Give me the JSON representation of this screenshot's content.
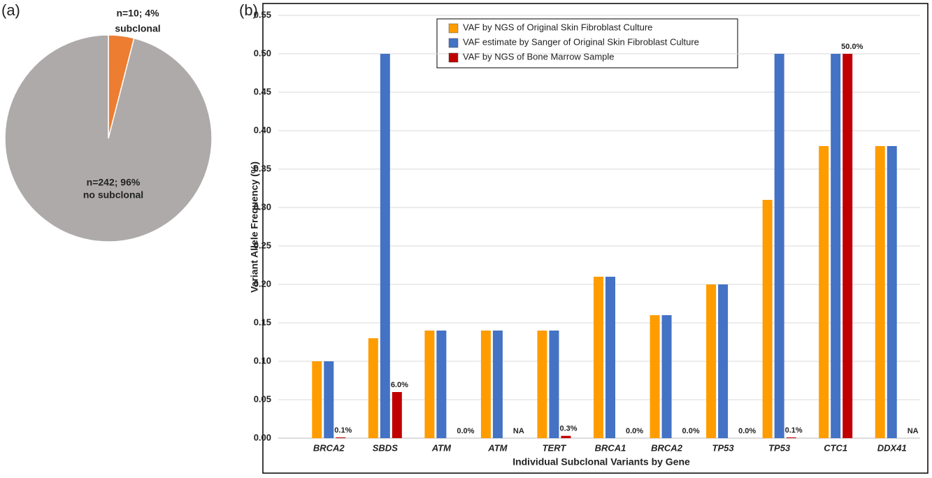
{
  "chart_data": [
    {
      "type": "pie",
      "panel": "(a)",
      "categories": [
        "subclonal",
        "no subclonal"
      ],
      "values": [
        4,
        96
      ],
      "value_labels": [
        "n=10; 4%",
        "n=242; 96%"
      ],
      "colors": [
        "#ed7d31",
        "#aeaaaa"
      ]
    },
    {
      "type": "bar",
      "panel": "(b)",
      "y_label": "Variant Allele Frequency (%)",
      "x_label": "Individual Subclonal Variants by Gene",
      "categories": [
        "BRCA2",
        "SBDS",
        "ATM",
        "ATM",
        "TERT",
        "BRCA1",
        "BRCA2",
        "TP53",
        "TP53",
        "CTC1",
        "DDX41"
      ],
      "series": [
        {
          "name": "VAF by NGS of Original Skin Fibroblast Culture",
          "color": "#ff9c00",
          "values": [
            0.1,
            0.13,
            0.14,
            0.14,
            0.14,
            0.21,
            0.16,
            0.2,
            0.31,
            0.38,
            0.38
          ]
        },
        {
          "name": "VAF estimate by Sanger of Original Skin Fibroblast Culture",
          "color": "#4472c4",
          "values": [
            0.1,
            0.5,
            0.14,
            0.14,
            0.14,
            0.21,
            0.16,
            0.2,
            0.5,
            0.5,
            0.38
          ]
        },
        {
          "name": "VAF by NGS of Bone Marrow Sample",
          "color": "#c00000",
          "values": [
            0.001,
            0.06,
            0.0,
            null,
            0.003,
            0.0,
            0.0,
            0.0,
            0.001,
            0.5,
            null
          ],
          "value_labels": [
            "0.1%",
            "6.0%",
            "0.0%",
            "NA",
            "0.3%",
            "0.0%",
            "0.0%",
            "0.0%",
            "0.1%",
            "50.0%",
            "NA"
          ]
        }
      ],
      "ylim": [
        0,
        0.55
      ],
      "yticks": [
        {
          "value": 0,
          "label": "0.00"
        },
        {
          "value": 0.05,
          "label": "0.05"
        },
        {
          "value": 0.1,
          "label": "0.10"
        },
        {
          "value": 0.15,
          "label": "0.15"
        },
        {
          "value": 0.2,
          "label": "0.20"
        },
        {
          "value": 0.25,
          "label": "0.25"
        },
        {
          "value": 0.3,
          "label": "0.30"
        },
        {
          "value": 0.35,
          "label": "0.35"
        },
        {
          "value": 0.4,
          "label": "0.40"
        },
        {
          "value": 0.45,
          "label": "0.45"
        },
        {
          "value": 0.5,
          "label": "0.50"
        },
        {
          "value": 0.55,
          "label": "0.55"
        }
      ],
      "grid": true
    }
  ]
}
